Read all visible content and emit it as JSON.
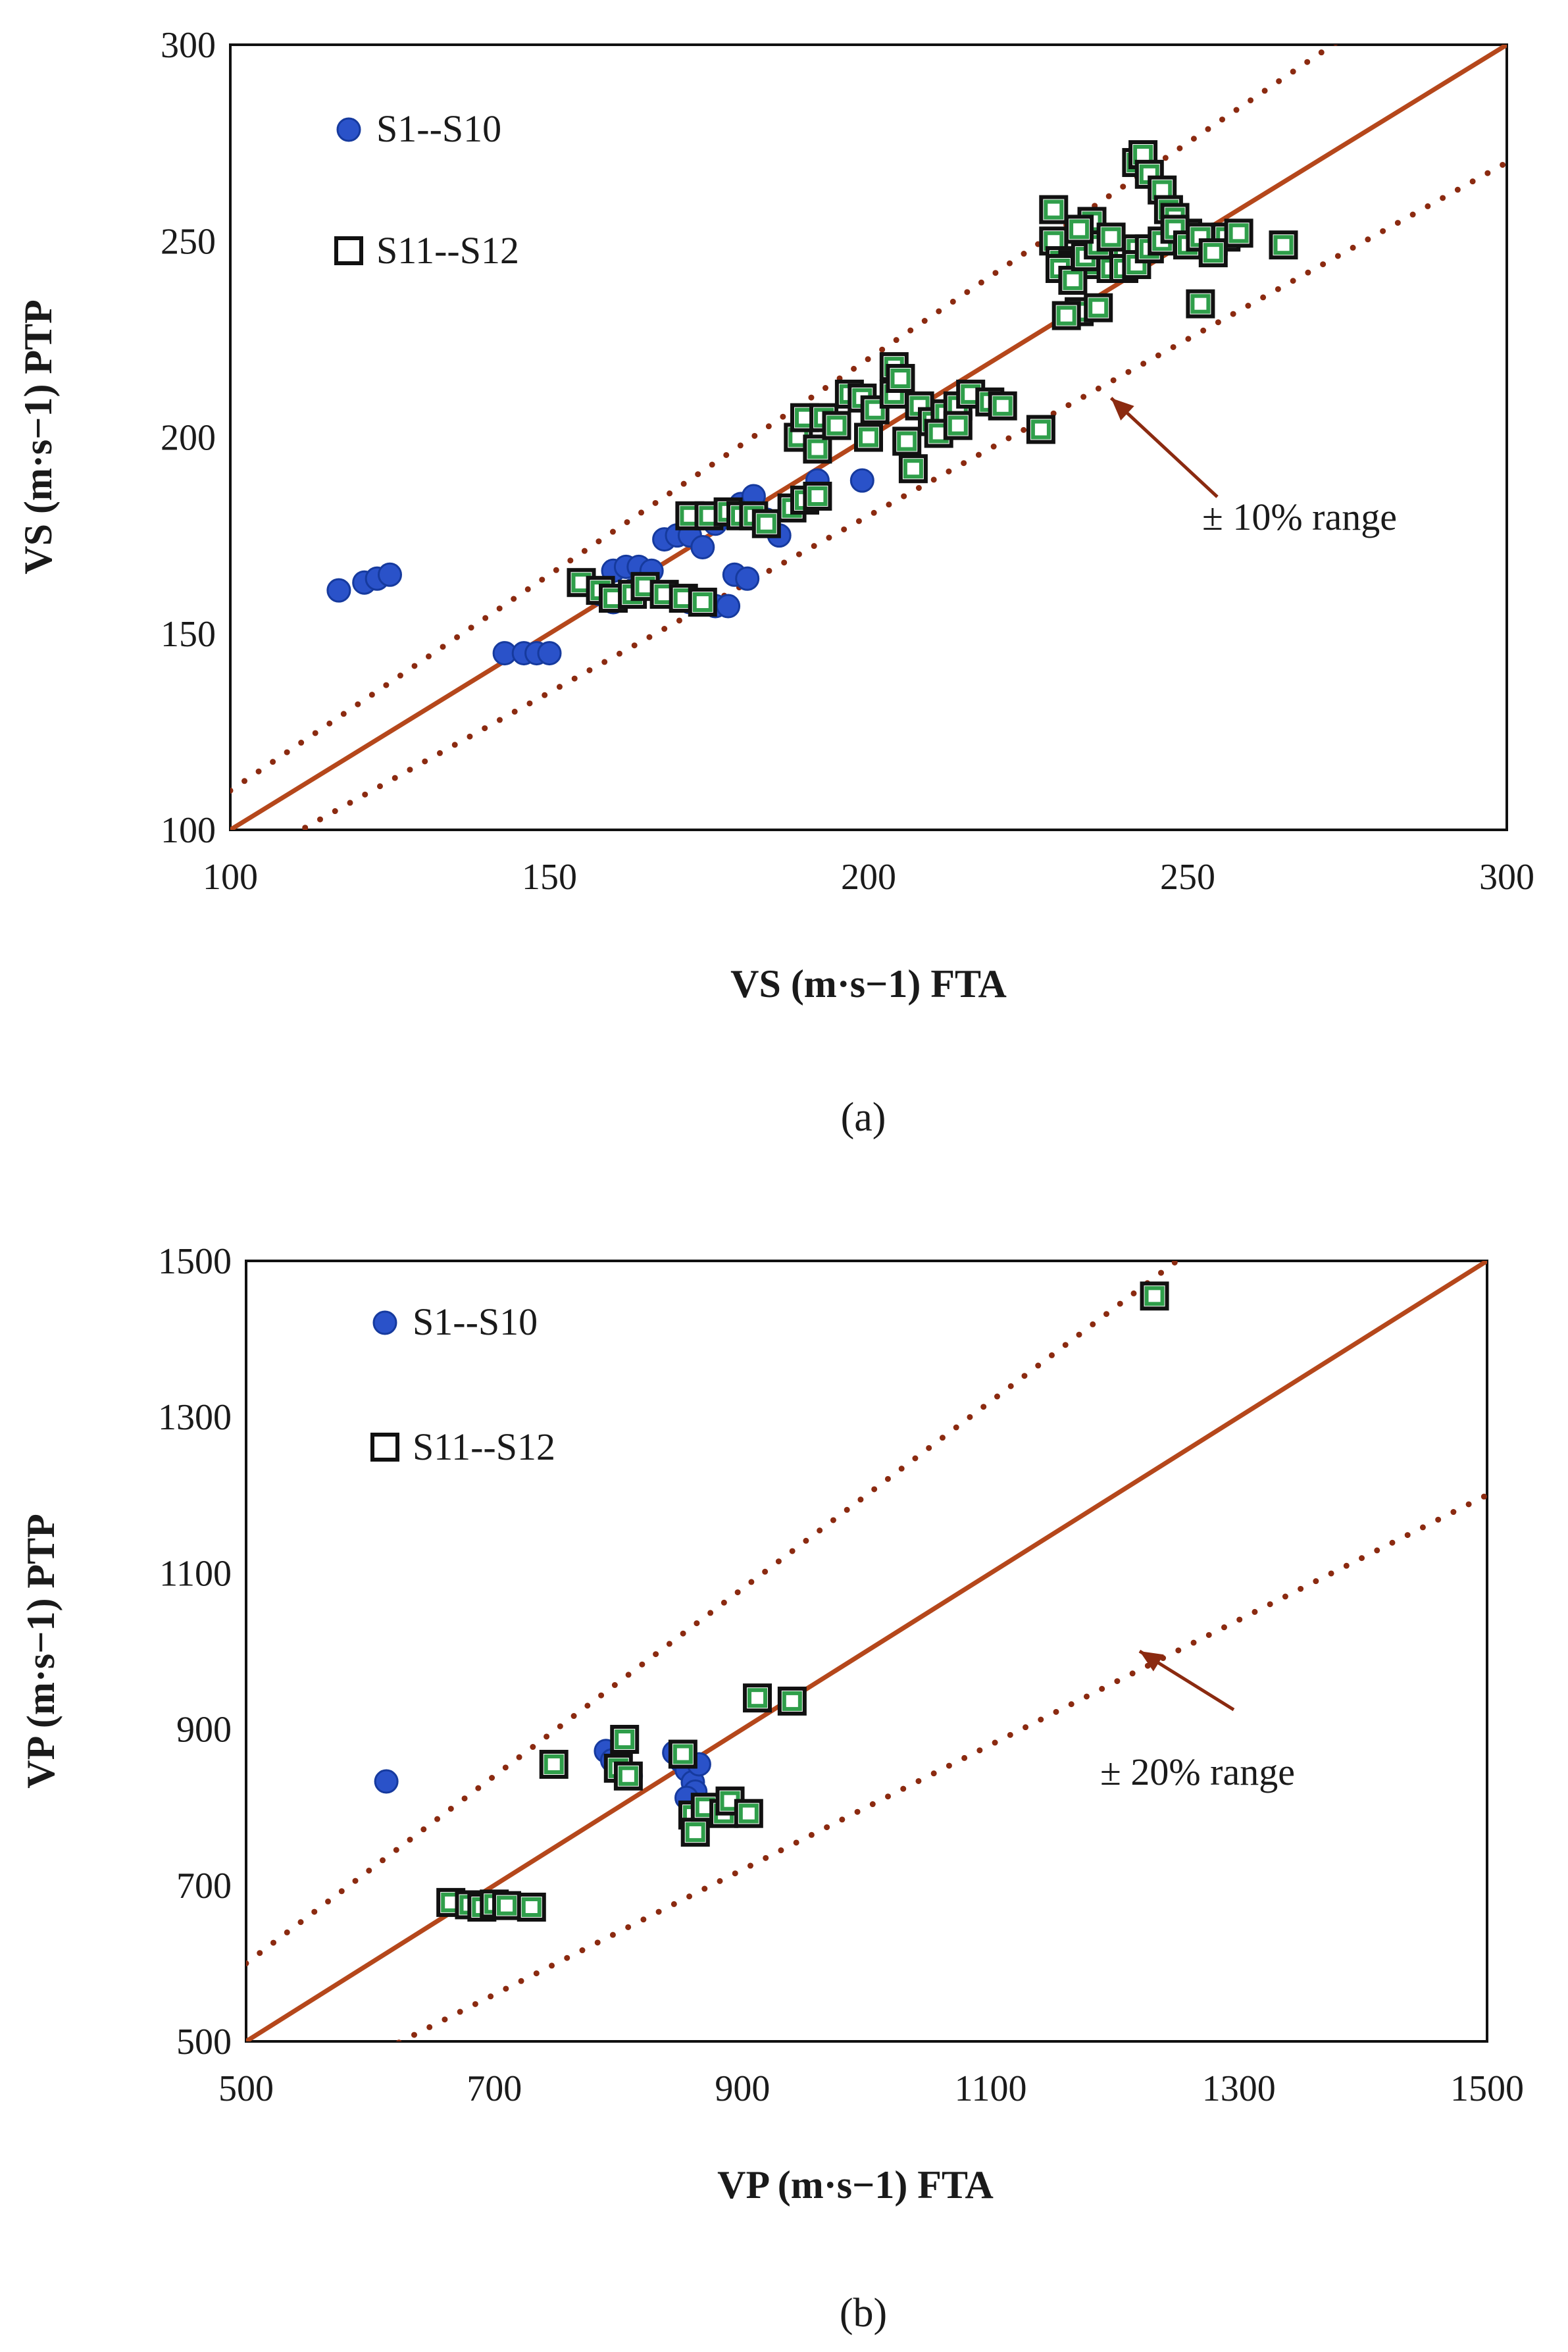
{
  "colors": {
    "identity_line": "#b5471b",
    "range_line": "#8b2a10",
    "blue_marker": "#2a52c9",
    "blue_edge": "#163a9e",
    "green_marker": "#2f9e4a",
    "square_edge": "#111111"
  },
  "chart_data": [
    {
      "type": "scatter",
      "panel_label": "(a)",
      "panel_letter": "a",
      "xlabel": "VS (m·s−1) FTA",
      "ylabel": "VS (m·s−1) PTP",
      "xlim": [
        100,
        300
      ],
      "ylim": [
        100,
        300
      ],
      "x_ticks": [
        "100",
        "150",
        "200",
        "250",
        "300"
      ],
      "y_ticks": [
        "100",
        "150",
        "200",
        "250",
        "300"
      ],
      "range_pct": 10,
      "annotation": "± 10% range",
      "annotation_arrow_to": [
        238,
        210
      ],
      "legend": {
        "position": "top-left",
        "entries": [
          "S1--S10",
          "S11--S12"
        ]
      },
      "series": [
        {
          "name": "S1--S10",
          "marker": "circle",
          "points": [
            [
              117,
              161
            ],
            [
              121,
              163
            ],
            [
              123,
              164
            ],
            [
              125,
              165
            ],
            [
              143,
              145
            ],
            [
              146,
              145
            ],
            [
              148,
              145
            ],
            [
              150,
              145
            ],
            [
              160,
              166
            ],
            [
              162,
              167
            ],
            [
              164,
              167
            ],
            [
              166,
              166
            ],
            [
              168,
              174
            ],
            [
              170,
              175
            ],
            [
              172,
              175
            ],
            [
              174,
              172
            ],
            [
              176,
              178
            ],
            [
              178,
              180
            ],
            [
              180,
              183
            ],
            [
              182,
              185
            ],
            [
              184,
              179
            ],
            [
              186,
              175
            ],
            [
              176,
              157
            ],
            [
              178,
              157
            ],
            [
              179,
              165
            ],
            [
              181,
              164
            ],
            [
              192,
              189
            ],
            [
              199,
              189
            ],
            [
              158,
              160
            ],
            [
              160,
              158
            ],
            [
              163,
              161
            ],
            [
              170,
              159
            ],
            [
              172,
              158
            ]
          ]
        },
        {
          "name": "S11--S12",
          "marker": "square",
          "points": [
            [
              155,
              163
            ],
            [
              158,
              161
            ],
            [
              160,
              159
            ],
            [
              163,
              160
            ],
            [
              165,
              162
            ],
            [
              168,
              160
            ],
            [
              171,
              159
            ],
            [
              174,
              158
            ],
            [
              172,
              180
            ],
            [
              175,
              180
            ],
            [
              178,
              181
            ],
            [
              180,
              180
            ],
            [
              182,
              180
            ],
            [
              184,
              178
            ],
            [
              188,
              182
            ],
            [
              190,
              184
            ],
            [
              192,
              185
            ],
            [
              189,
              200
            ],
            [
              190,
              205
            ],
            [
              192,
              197
            ],
            [
              193,
              205
            ],
            [
              195,
              203
            ],
            [
              197,
              211
            ],
            [
              199,
              210
            ],
            [
              200,
              200
            ],
            [
              201,
              207
            ],
            [
              204,
              211
            ],
            [
              204,
              218
            ],
            [
              205,
              215
            ],
            [
              206,
              199
            ],
            [
              207,
              192
            ],
            [
              208,
              208
            ],
            [
              210,
              204
            ],
            [
              212,
              206
            ],
            [
              214,
              208
            ],
            [
              216,
              211
            ],
            [
              219,
              209
            ],
            [
              221,
              208
            ],
            [
              211,
              201
            ],
            [
              214,
              203
            ],
            [
              227,
              202
            ],
            [
              229,
              258
            ],
            [
              229,
              250
            ],
            [
              230,
              245
            ],
            [
              232,
              244
            ],
            [
              233,
              232
            ],
            [
              235,
              244
            ],
            [
              235,
              255
            ],
            [
              236,
              233
            ],
            [
              238,
              243
            ],
            [
              240,
              246
            ],
            [
              242,
              248
            ],
            [
              242,
              270
            ],
            [
              243,
              272
            ],
            [
              244,
              267
            ],
            [
              246,
              263
            ],
            [
              247,
              258
            ],
            [
              248,
              256
            ],
            [
              250,
              252
            ],
            [
              252,
              234
            ],
            [
              254,
              250
            ],
            [
              256,
              251
            ],
            [
              258,
              252
            ],
            [
              265,
              249
            ],
            [
              230,
              243
            ],
            [
              232,
              240
            ],
            [
              234,
              246
            ],
            [
              236,
              249
            ],
            [
              238,
              251
            ],
            [
              240,
              243
            ],
            [
              242,
              244
            ],
            [
              244,
              248
            ],
            [
              246,
              250
            ],
            [
              248,
              253
            ],
            [
              250,
              249
            ],
            [
              252,
              251
            ],
            [
              254,
              247
            ],
            [
              231,
              231
            ],
            [
              233,
              253
            ]
          ]
        }
      ]
    },
    {
      "type": "scatter",
      "panel_label": "(b)",
      "panel_letter": "b",
      "xlabel": "VP (m·s−1) FTA",
      "ylabel": "VP (m·s−1) PTP",
      "xlim": [
        500,
        1500
      ],
      "ylim": [
        500,
        1500
      ],
      "x_ticks": [
        "500",
        "700",
        "900",
        "1100",
        "1300",
        "1500"
      ],
      "y_ticks": [
        "500",
        "700",
        "900",
        "1100",
        "1300",
        "1500"
      ],
      "range_pct": 20,
      "annotation": "± 20% range",
      "annotation_arrow_to": [
        1220,
        1000
      ],
      "legend": {
        "position": "top-left",
        "entries": [
          "S1--S10",
          "S11--S12"
        ]
      },
      "series": [
        {
          "name": "S1--S10",
          "marker": "circle",
          "points": [
            [
              613,
              833
            ],
            [
              790,
              872
            ],
            [
              795,
              860
            ],
            [
              800,
              855
            ],
            [
              805,
              845
            ],
            [
              810,
              840
            ],
            [
              845,
              870
            ],
            [
              850,
              860
            ],
            [
              855,
              848
            ],
            [
              860,
              832
            ],
            [
              862,
              820
            ],
            [
              855,
              812
            ],
            [
              865,
              855
            ]
          ]
        },
        {
          "name": "S11--S12",
          "marker": "square",
          "points": [
            [
              665,
              678
            ],
            [
              680,
              675
            ],
            [
              690,
              672
            ],
            [
              700,
              676
            ],
            [
              710,
              674
            ],
            [
              730,
              672
            ],
            [
              748,
              855
            ],
            [
              800,
              850
            ],
            [
              805,
              887
            ],
            [
              808,
              840
            ],
            [
              852,
              868
            ],
            [
              860,
              790
            ],
            [
              862,
              768
            ],
            [
              870,
              800
            ],
            [
              885,
              792
            ],
            [
              890,
              808
            ],
            [
              905,
              792
            ],
            [
              912,
              940
            ],
            [
              940,
              936
            ],
            [
              1232,
              1455
            ]
          ]
        }
      ]
    }
  ]
}
